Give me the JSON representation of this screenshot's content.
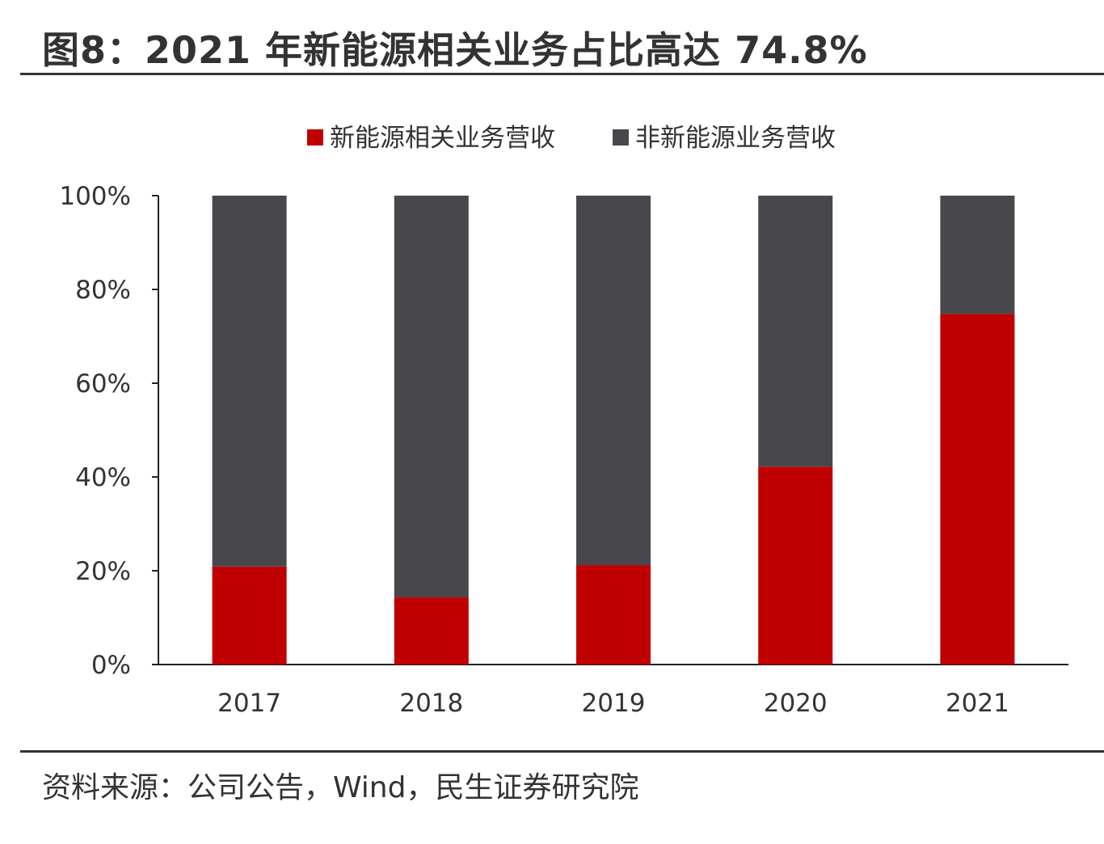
{
  "title": "图8：2021 年新能源相关业务占比高达 74.8%",
  "source": "资料来源：公司公告，Wind，民生证券研究院",
  "chart_data": {
    "type": "bar",
    "stacked": true,
    "categories": [
      "2017",
      "2018",
      "2019",
      "2020",
      "2021"
    ],
    "series": [
      {
        "name": "新能源相关业务营收",
        "color": "#C00000",
        "values": [
          20.9,
          14.3,
          21.2,
          42.2,
          74.8
        ]
      },
      {
        "name": "非新能源业务营收",
        "color": "#48484C",
        "values": [
          79.1,
          85.7,
          78.8,
          57.8,
          25.2
        ]
      }
    ],
    "yticks": [
      "0%",
      "20%",
      "40%",
      "60%",
      "80%",
      "100%"
    ],
    "ylim": [
      0,
      100
    ],
    "legend": "top",
    "grid": false
  }
}
